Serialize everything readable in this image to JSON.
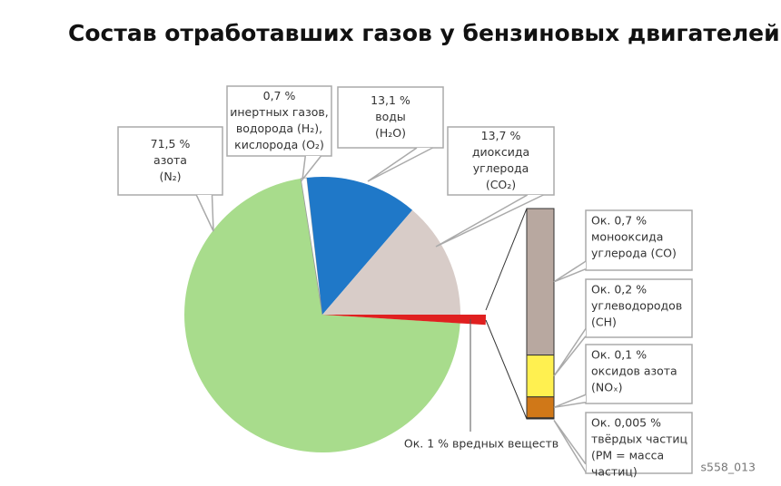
{
  "figure_id": "s558_013",
  "chart_data": [
    {
      "type": "pie",
      "title": "Состав отработавших газов у бензиновых двигателей",
      "categories": [
        [
          "азота",
          "(N₂)"
        ],
        [
          "инертных газов,",
          "водорода (H₂),",
          "кислорода (O₂)"
        ],
        [
          "воды",
          "(H₂O)"
        ],
        [
          "диоксида",
          "углерода",
          "(CO₂)"
        ],
        null
      ],
      "values": [
        71.5,
        0.7,
        13.1,
        13.7,
        1
      ],
      "value_labels": [
        "71,5 %",
        "0,7 %",
        "13,1 %",
        "13,7 %",
        "Ок. 1 % вредных веществ"
      ],
      "colors": [
        "#a8dc8c",
        "#ffffff",
        "#1f78c8",
        "#d8ccc8",
        "#e02020"
      ]
    },
    {
      "type": "stacked-bar",
      "categories": [
        [
          "монооксида",
          "углерода (CO)"
        ],
        [
          "углеводородов",
          "(CH)"
        ],
        [
          "оксидов азота",
          "(NOₓ)"
        ],
        [
          "твёрдых частиц",
          "(PM = масса",
          "частиц)"
        ]
      ],
      "values": [
        0.7,
        0.2,
        0.1,
        0.005
      ],
      "value_labels": [
        "Ок. 0,7 %",
        "Ок. 0,2 %",
        "Ок. 0,1 %",
        "Ок. 0,005 %"
      ],
      "colors": [
        "#b8a8a0",
        "#fff050",
        "#d07818",
        "#222222"
      ]
    }
  ]
}
